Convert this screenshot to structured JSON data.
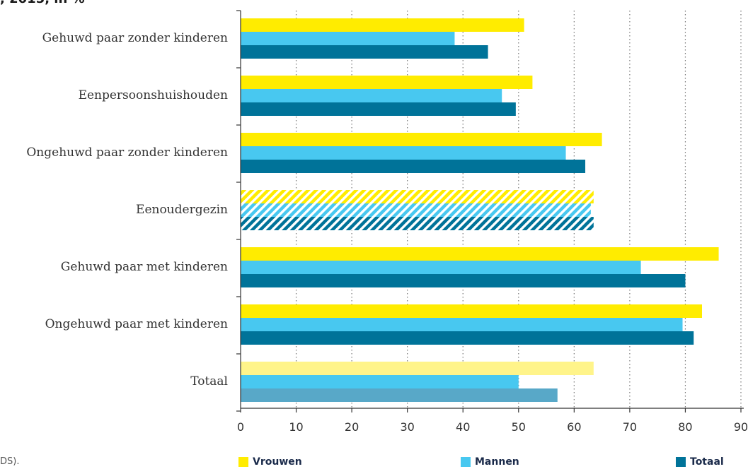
{
  "title_fragment": ", 2015, in %",
  "source_fragment": "DS).",
  "colors": {
    "vrouwen": "#FFEC00",
    "mannen": "#48C8F0",
    "totaal": "#007399",
    "vrouwen_light": "#FFF48A",
    "totaal_light": "#58A8C8",
    "grid": "#777777",
    "axis": "#333333"
  },
  "legend": [
    {
      "label": "Vrouwen",
      "color": "#FFEC00"
    },
    {
      "label": "Mannen",
      "color": "#48C8F0"
    },
    {
      "label": "Totaal",
      "color": "#007399"
    }
  ],
  "chart_data": {
    "type": "bar",
    "orientation": "horizontal",
    "categories": [
      "Gehuwd paar zonder kinderen",
      "Eenpersoonshuishouden",
      "Ongehuwd paar zonder kinderen",
      "Eenoudergezin",
      "Gehuwd paar met kinderen",
      "Ongehuwd paar met kinderen",
      "Totaal"
    ],
    "series": [
      {
        "name": "Vrouwen",
        "values": [
          51,
          52.5,
          65,
          63.5,
          86,
          83,
          63.5
        ]
      },
      {
        "name": "Mannen",
        "values": [
          38.5,
          47,
          58.5,
          63,
          72,
          79.5,
          50
        ]
      },
      {
        "name": "Totaal",
        "values": [
          44.5,
          49.5,
          62,
          63.5,
          80,
          81.5,
          57
        ]
      }
    ],
    "hatched_categories": [
      "Eenoudergezin"
    ],
    "lighter_categories": [
      "Totaal"
    ],
    "xlim": [
      0,
      90
    ],
    "xticks": [
      0,
      10,
      20,
      30,
      40,
      50,
      60,
      70,
      80,
      90
    ],
    "grid": "vertical dotted",
    "legend_position": "bottom"
  }
}
